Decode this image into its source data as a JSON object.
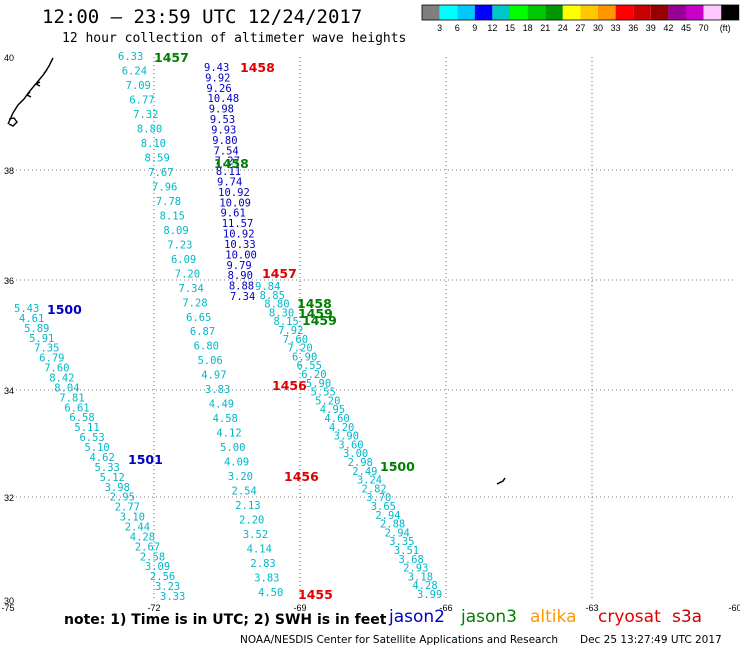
{
  "header": {
    "title": "12:00 – 23:59 UTC 12/24/2017",
    "subtitle": "12 hour collection of altimeter wave heights"
  },
  "color_scale": {
    "colors": [
      "#7f7f7f",
      "#00ffff",
      "#00c8ff",
      "#0000ff",
      "#00c8c8",
      "#00ff00",
      "#00c800",
      "#009600",
      "#ffff00",
      "#ffc800",
      "#ff9600",
      "#ff0000",
      "#c80000",
      "#960000",
      "#960096",
      "#c800c8",
      "#ffc8ff",
      "#000000"
    ],
    "labels": [
      "3",
      "6",
      "9",
      "12",
      "15",
      "18",
      "21",
      "24",
      "27",
      "30",
      "33",
      "36",
      "39",
      "42",
      "45",
      "70"
    ],
    "unit": "(ft)"
  },
  "axes": {
    "lon_ticks": [
      "-75",
      "-72",
      "-69",
      "-66",
      "-63",
      "-60"
    ],
    "lat_ticks": [
      "40",
      "38",
      "36",
      "34",
      "32",
      "30"
    ]
  },
  "tracks": [
    {
      "color": "#00b8c8",
      "values": [
        "6.33",
        "6.24",
        "7.09",
        "6.77",
        "7.32",
        "8.80",
        "8.10",
        "8.59",
        "7.67",
        "7.96",
        "7.78",
        "8.15",
        "8.09",
        "7.23",
        "6.09",
        "7.20",
        "7.34",
        "7.28",
        "6.65",
        "6.87",
        "6.80",
        "5.06",
        "4.97",
        "3.83",
        "4.49",
        "4.58",
        "4.12",
        "5.00",
        "4.09",
        "3.20",
        "2.54",
        "2.13",
        "2.20",
        "3.52",
        "4.14",
        "2.83",
        "3.83",
        "4.50"
      ]
    },
    {
      "color": "#0000c0",
      "values": [
        "9.43",
        "9.92",
        "9.26",
        "10.48",
        "9.98",
        "9.53",
        "9.93",
        "9.80",
        "7.54",
        "7.27",
        "8.11",
        "9.74",
        "10.92",
        "10.09",
        "9.61",
        "11.57",
        "10.92",
        "10.33",
        "10.00",
        "9.79",
        "8.90",
        "8.88",
        "7.34"
      ]
    },
    {
      "color": "#00b8c8",
      "values": [
        "5.43",
        "4.61",
        "5.89",
        "5.91",
        "7.35",
        "6.79",
        "7.60",
        "8.42",
        "8.04",
        "7.81",
        "6.61",
        "6.58",
        "5.11",
        "6.53",
        "5.10",
        "4.62",
        "5.33",
        "5.12",
        "3.98",
        "2.95",
        "2.77",
        "3.10",
        "2.44",
        "4.28",
        "2.67",
        "2.58",
        "3.09",
        "2.56",
        "3.23",
        "3.33"
      ]
    },
    {
      "color": "#00b8c8",
      "values": [
        "9.84",
        "8.85",
        "8.80",
        "8.30",
        "8.15",
        "7.92",
        "7.60",
        "7.20",
        "6.90",
        "6.55",
        "6.20",
        "5.90",
        "5.55",
        "5.20",
        "4.95",
        "4.60",
        "4.20",
        "3.90",
        "3.60",
        "3.00",
        "2.98",
        "2.49",
        "3.24",
        "2.82",
        "3.70",
        "3.65",
        "2.94",
        "2.88",
        "2.94",
        "3.35",
        "3.51",
        "3.68",
        "2.93",
        "3.18",
        "4.28",
        "3.99"
      ]
    }
  ],
  "time_labels": [
    {
      "text": "1457",
      "color": "#008000"
    },
    {
      "text": "1458",
      "color": "#e00000"
    },
    {
      "text": "1458",
      "color": "#008000"
    },
    {
      "text": "1457",
      "color": "#e00000"
    },
    {
      "text": "1458",
      "color": "#008000"
    },
    {
      "text": "1459",
      "color": "#008000"
    },
    {
      "text": "1459",
      "color": "#008000"
    },
    {
      "text": "1456",
      "color": "#e00000"
    },
    {
      "text": "1500",
      "color": "#0000c0"
    },
    {
      "text": "1501",
      "color": "#0000c0"
    },
    {
      "text": "1500",
      "color": "#008000"
    },
    {
      "text": "1456",
      "color": "#e00000"
    },
    {
      "text": "1455",
      "color": "#e00000"
    }
  ],
  "footer": {
    "note": "note: 1) Time is in UTC; 2) SWH is in feet",
    "missions": [
      {
        "name": "jason2",
        "color": "#0000c0"
      },
      {
        "name": "jason3",
        "color": "#008000"
      },
      {
        "name": "altika",
        "color": "#ff9600"
      },
      {
        "name": "cryosat",
        "color": "#e00000"
      },
      {
        "name": "s3a",
        "color": "#c80000"
      }
    ],
    "credit": "NOAA/NESDIS Center for Satellite Applications and Research",
    "timestamp": "Dec 25 13:27:49 UTC 2017"
  }
}
